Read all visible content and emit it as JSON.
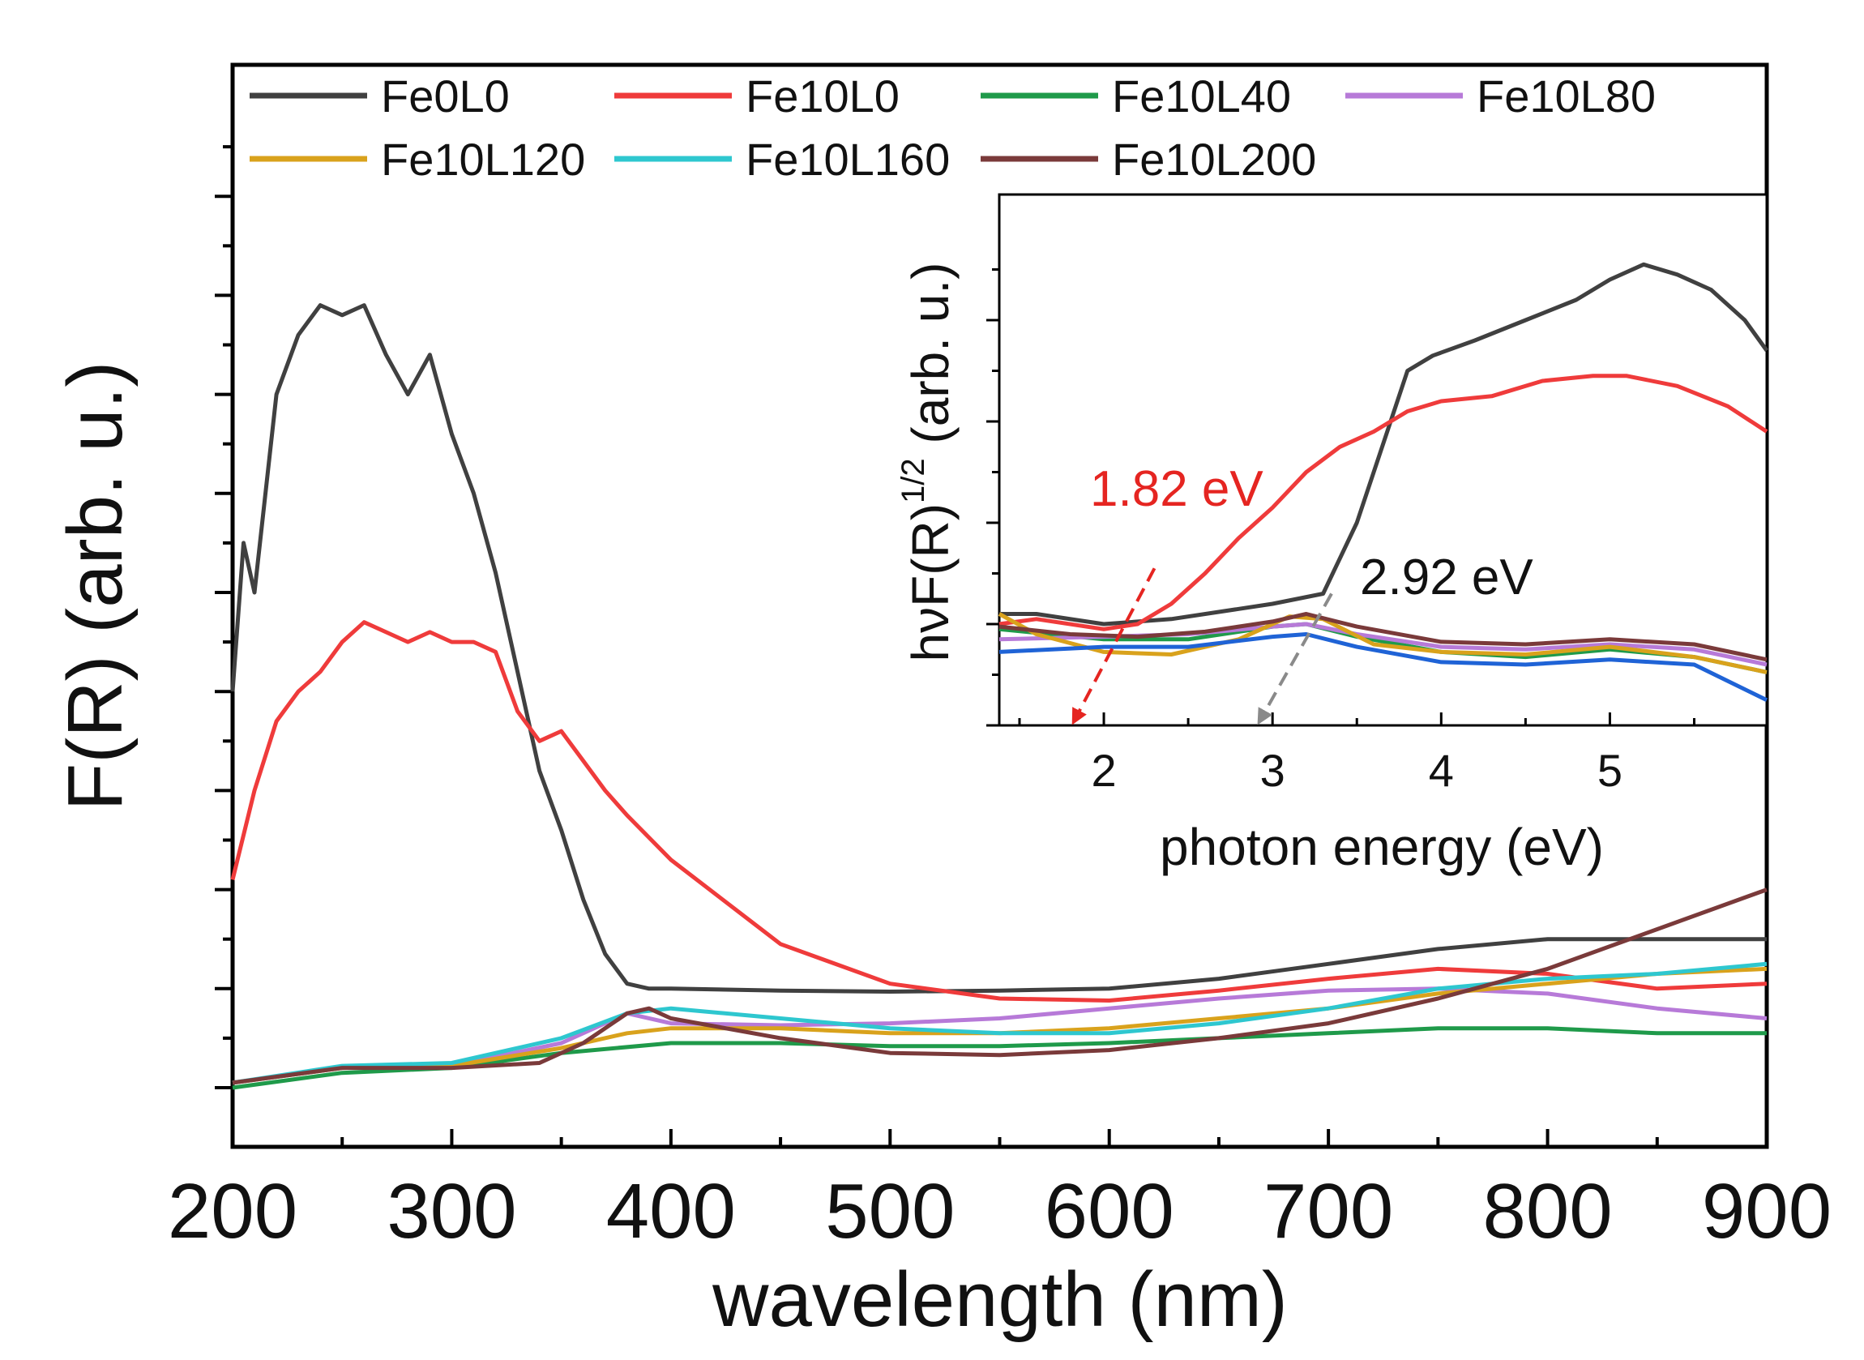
{
  "chart_data": [
    {
      "type": "line",
      "panel": "main",
      "xlabel": "wavelength (nm)",
      "ylabel": "F(R) (arb. u.)",
      "xlim": [
        200,
        900
      ],
      "ylim": [
        0,
        10
      ],
      "xticks": [
        200,
        300,
        400,
        500,
        600,
        700,
        800,
        900
      ],
      "y_tick_labels_shown": false,
      "grid": false,
      "legend": {
        "placement": "top",
        "columns": 4
      },
      "series": [
        {
          "name": "Fe0L0",
          "color": "#404040",
          "x": [
            200,
            205,
            210,
            220,
            230,
            240,
            250,
            260,
            270,
            280,
            290,
            300,
            310,
            320,
            330,
            340,
            350,
            360,
            370,
            380,
            390,
            400,
            450,
            500,
            550,
            600,
            650,
            700,
            750,
            800,
            850,
            900
          ],
          "y": [
            4,
            5.5,
            5.0,
            7.0,
            7.6,
            7.9,
            7.8,
            7.9,
            7.4,
            7.0,
            7.4,
            6.6,
            6.0,
            5.2,
            4.2,
            3.2,
            2.6,
            1.9,
            1.35,
            1.05,
            1.0,
            1.0,
            0.98,
            0.97,
            0.98,
            1.0,
            1.1,
            1.25,
            1.4,
            1.5,
            1.5,
            1.5
          ]
        },
        {
          "name": "Fe10L0",
          "color": "#ef3b3b",
          "x": [
            200,
            210,
            220,
            230,
            240,
            250,
            260,
            270,
            280,
            290,
            300,
            310,
            320,
            330,
            340,
            350,
            360,
            370,
            380,
            400,
            450,
            500,
            550,
            600,
            650,
            700,
            750,
            800,
            850,
            900
          ],
          "y": [
            2.1,
            3.0,
            3.7,
            4.0,
            4.2,
            4.5,
            4.7,
            4.6,
            4.5,
            4.6,
            4.5,
            4.5,
            4.4,
            3.8,
            3.5,
            3.6,
            3.3,
            3.0,
            2.75,
            2.3,
            1.45,
            1.05,
            0.9,
            0.88,
            0.98,
            1.1,
            1.2,
            1.15,
            1.0,
            1.05
          ]
        },
        {
          "name": "Fe10L40",
          "color": "#1f9a4a",
          "x": [
            200,
            250,
            300,
            350,
            400,
            450,
            500,
            550,
            600,
            650,
            700,
            750,
            800,
            850,
            900
          ],
          "y": [
            0.0,
            0.15,
            0.2,
            0.35,
            0.45,
            0.45,
            0.42,
            0.42,
            0.45,
            0.5,
            0.55,
            0.6,
            0.6,
            0.55,
            0.55
          ]
        },
        {
          "name": "Fe10L80",
          "color": "#b77ad8",
          "x": [
            200,
            250,
            300,
            350,
            380,
            400,
            450,
            500,
            550,
            600,
            650,
            700,
            750,
            800,
            850,
            900
          ],
          "y": [
            0.05,
            0.2,
            0.22,
            0.45,
            0.75,
            0.65,
            0.63,
            0.65,
            0.7,
            0.8,
            0.9,
            0.98,
            1.0,
            0.95,
            0.8,
            0.7
          ]
        },
        {
          "name": "Fe10L120",
          "color": "#d9a21c",
          "x": [
            200,
            250,
            300,
            350,
            380,
            400,
            450,
            500,
            550,
            600,
            650,
            700,
            750,
            800,
            850,
            900
          ],
          "y": [
            0.05,
            0.2,
            0.22,
            0.4,
            0.55,
            0.6,
            0.6,
            0.55,
            0.55,
            0.6,
            0.7,
            0.8,
            0.95,
            1.05,
            1.15,
            1.2
          ]
        },
        {
          "name": "Fe10L160",
          "color": "#2ec7cf",
          "x": [
            200,
            250,
            300,
            350,
            380,
            400,
            450,
            500,
            550,
            600,
            650,
            700,
            750,
            800,
            850,
            900
          ],
          "y": [
            0.05,
            0.22,
            0.25,
            0.5,
            0.75,
            0.8,
            0.7,
            0.6,
            0.55,
            0.55,
            0.65,
            0.8,
            1.0,
            1.1,
            1.15,
            1.25
          ]
        },
        {
          "name": "Fe10L200",
          "color": "#7a3a3a",
          "x": [
            200,
            250,
            300,
            340,
            360,
            380,
            390,
            400,
            450,
            500,
            550,
            600,
            650,
            700,
            750,
            800,
            850,
            900
          ],
          "y": [
            0.05,
            0.2,
            0.2,
            0.25,
            0.45,
            0.75,
            0.8,
            0.7,
            0.5,
            0.35,
            0.33,
            0.38,
            0.5,
            0.65,
            0.9,
            1.2,
            1.6,
            2.0
          ]
        }
      ]
    },
    {
      "type": "line",
      "panel": "inset",
      "xlabel": "photon energy (eV)",
      "ylabel": "hνF(R)",
      "ylabel_sup": "1/2",
      "ylabel_suffix": " (arb. u.)",
      "xlim": [
        1.38,
        5.93
      ],
      "ylim": [
        0,
        10
      ],
      "xticks": [
        2,
        3,
        4,
        5
      ],
      "y_tick_labels_shown": false,
      "series": [
        {
          "name": "Fe0L0",
          "color": "#404040",
          "x": [
            1.38,
            1.6,
            2.0,
            2.4,
            2.8,
            3.0,
            3.3,
            3.5,
            3.7,
            3.8,
            3.95,
            4.2,
            4.5,
            4.8,
            5.0,
            5.2,
            5.4,
            5.6,
            5.8,
            5.93
          ],
          "y": [
            2.2,
            2.2,
            2.0,
            2.1,
            2.3,
            2.4,
            2.6,
            4.0,
            6.0,
            7.0,
            7.3,
            7.6,
            8.0,
            8.4,
            8.8,
            9.1,
            8.9,
            8.6,
            8.0,
            7.4
          ]
        },
        {
          "name": "Fe10L0",
          "color": "#ef3b3b",
          "x": [
            1.38,
            1.6,
            2.0,
            2.2,
            2.4,
            2.6,
            2.8,
            3.0,
            3.2,
            3.4,
            3.6,
            3.8,
            4.0,
            4.3,
            4.6,
            4.9,
            5.1,
            5.4,
            5.7,
            5.93
          ],
          "y": [
            2.0,
            2.1,
            1.9,
            2.0,
            2.4,
            3.0,
            3.7,
            4.3,
            5.0,
            5.5,
            5.8,
            6.2,
            6.4,
            6.5,
            6.8,
            6.9,
            6.9,
            6.7,
            6.3,
            5.8
          ]
        },
        {
          "name": "Fe10L40",
          "color": "#1f9a4a",
          "x": [
            1.38,
            2.0,
            2.5,
            3.0,
            3.2,
            3.5,
            4.0,
            4.5,
            5.0,
            5.5,
            5.93
          ],
          "y": [
            1.9,
            1.7,
            1.7,
            1.95,
            2.0,
            1.75,
            1.45,
            1.35,
            1.5,
            1.35,
            1.05
          ]
        },
        {
          "name": "Fe10L80",
          "color": "#b77ad8",
          "x": [
            1.38,
            2.0,
            2.5,
            3.0,
            3.2,
            3.5,
            4.0,
            4.5,
            5.0,
            5.5,
            5.93
          ],
          "y": [
            1.7,
            1.75,
            1.8,
            1.95,
            2.0,
            1.8,
            1.55,
            1.5,
            1.6,
            1.5,
            1.2
          ]
        },
        {
          "name": "Fe10L120",
          "color": "#d9a21c",
          "x": [
            1.38,
            1.6,
            2.0,
            2.4,
            2.8,
            3.1,
            3.3,
            3.6,
            4.0,
            4.5,
            5.0,
            5.5,
            5.93
          ],
          "y": [
            2.2,
            1.8,
            1.45,
            1.4,
            1.7,
            2.15,
            2.1,
            1.6,
            1.45,
            1.4,
            1.55,
            1.35,
            1.05
          ]
        },
        {
          "name": "Fe10L160",
          "color": "#1f63d6",
          "x": [
            1.38,
            2.0,
            2.5,
            3.0,
            3.2,
            3.5,
            4.0,
            4.5,
            5.0,
            5.5,
            5.93
          ],
          "y": [
            1.45,
            1.55,
            1.55,
            1.75,
            1.8,
            1.55,
            1.25,
            1.2,
            1.3,
            1.2,
            0.5
          ]
        },
        {
          "name": "Fe10L200",
          "color": "#7a3a3a",
          "x": [
            1.38,
            1.8,
            2.2,
            2.6,
            3.0,
            3.2,
            3.5,
            4.0,
            4.5,
            5.0,
            5.5,
            5.93
          ],
          "y": [
            1.95,
            1.8,
            1.75,
            1.85,
            2.05,
            2.2,
            1.95,
            1.65,
            1.6,
            1.7,
            1.6,
            1.3
          ]
        }
      ],
      "annotations": [
        {
          "text": "1.82 eV",
          "color": "#e52521",
          "line_from": [
            2.3,
            3.1
          ],
          "line_to": [
            1.82,
            0.0
          ]
        },
        {
          "text": "2.92 eV",
          "color": "#111111",
          "line_from": [
            3.35,
            2.6
          ],
          "line_to": [
            2.92,
            0.0
          ]
        }
      ]
    }
  ]
}
